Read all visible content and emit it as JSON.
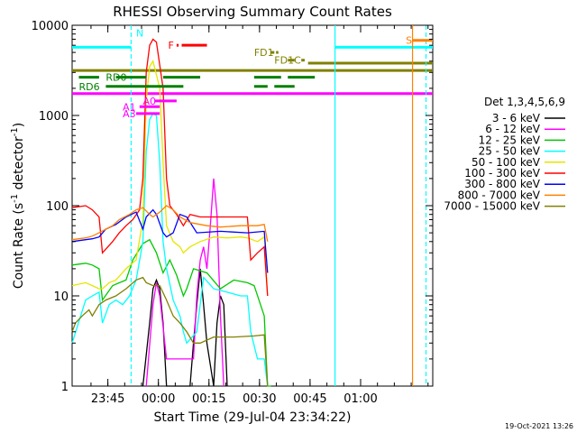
{
  "chart_data": {
    "type": "line",
    "title": "RHESSI Observing Summary Count Rates",
    "xlabel": "Start Time (29-Jul-04 23:34:22)",
    "ylabel_parts": [
      "Count Rate (s",
      "-1",
      " detector",
      "-1",
      ")"
    ],
    "y_scale": "log",
    "ylim": [
      1,
      10000
    ],
    "y_ticks": [
      {
        "value": 1,
        "label": "1"
      },
      {
        "value": 10,
        "label": "10"
      },
      {
        "value": 100,
        "label": "100"
      },
      {
        "value": 1000,
        "label": "1000"
      },
      {
        "value": 10000,
        "label": "10000"
      }
    ],
    "x_unit": "minutes since 23:34:22",
    "xlim": [
      0,
      107
    ],
    "x_ticks": [
      {
        "value": 10.6,
        "label": "23:45"
      },
      {
        "value": 25.6,
        "label": "00:00"
      },
      {
        "value": 40.6,
        "label": "00:15"
      },
      {
        "value": 55.6,
        "label": "00:30"
      },
      {
        "value": 70.6,
        "label": "00:45"
      },
      {
        "value": 85.6,
        "label": "01:00"
      }
    ],
    "legend_title": "Det 1,3,4,5,6,9",
    "legend_position": "right",
    "series": [
      {
        "name": "3 - 6 keV",
        "color": "#000000",
        "points": [
          [
            21,
            1
          ],
          [
            23,
            5
          ],
          [
            24,
            12
          ],
          [
            25,
            15
          ],
          [
            26,
            12
          ],
          [
            27,
            5
          ],
          [
            28,
            1
          ],
          [
            35,
            1
          ],
          [
            36,
            3
          ],
          [
            37,
            8
          ],
          [
            38,
            20
          ],
          [
            39,
            8
          ],
          [
            40,
            3
          ],
          [
            42,
            1
          ],
          [
            43,
            5
          ],
          [
            44,
            10
          ],
          [
            45,
            8
          ],
          [
            46,
            1
          ]
        ]
      },
      {
        "name": "6 - 12 keV",
        "color": "#ff00ff",
        "points": [
          [
            22,
            1
          ],
          [
            24,
            8
          ],
          [
            25,
            14
          ],
          [
            26,
            10
          ],
          [
            28,
            2
          ],
          [
            36,
            2
          ],
          [
            37,
            10
          ],
          [
            38,
            25
          ],
          [
            39,
            35
          ],
          [
            40,
            20
          ],
          [
            41,
            60
          ],
          [
            42,
            200
          ],
          [
            43,
            80
          ],
          [
            44,
            6
          ],
          [
            45,
            1
          ]
        ]
      },
      {
        "name": "12 - 25 keV",
        "color": "#00c800",
        "points": [
          [
            0,
            22
          ],
          [
            4,
            23
          ],
          [
            6,
            22
          ],
          [
            8,
            20
          ],
          [
            9,
            9
          ],
          [
            12,
            13
          ],
          [
            16,
            15
          ],
          [
            18,
            25
          ],
          [
            21,
            38
          ],
          [
            23,
            42
          ],
          [
            25,
            30
          ],
          [
            27,
            18
          ],
          [
            29,
            25
          ],
          [
            31,
            17
          ],
          [
            33,
            10
          ],
          [
            34,
            12
          ],
          [
            36,
            20
          ],
          [
            40,
            18
          ],
          [
            44,
            12
          ],
          [
            48,
            15
          ],
          [
            52,
            14
          ],
          [
            54,
            13
          ],
          [
            57,
            6
          ],
          [
            58,
            1
          ],
          [
            59,
            1
          ]
        ]
      },
      {
        "name": "25 - 50 keV",
        "color": "#00ffff",
        "points": [
          [
            0,
            3
          ],
          [
            4,
            9
          ],
          [
            6,
            10
          ],
          [
            8,
            11
          ],
          [
            9,
            5
          ],
          [
            11,
            8
          ],
          [
            13,
            9
          ],
          [
            15,
            8
          ],
          [
            17,
            10
          ],
          [
            19,
            15
          ],
          [
            21,
            40
          ],
          [
            22,
            400
          ],
          [
            23,
            900
          ],
          [
            24,
            1050
          ],
          [
            25,
            1000
          ],
          [
            26,
            300
          ],
          [
            27,
            40
          ],
          [
            28,
            20
          ],
          [
            30,
            9
          ],
          [
            32,
            6
          ],
          [
            33,
            4
          ],
          [
            34,
            3
          ],
          [
            37,
            4
          ],
          [
            39,
            16
          ],
          [
            42,
            12
          ],
          [
            46,
            11
          ],
          [
            50,
            10
          ],
          [
            52,
            10
          ],
          [
            53,
            4
          ],
          [
            55,
            2
          ],
          [
            57,
            2
          ],
          [
            58,
            1
          ]
        ]
      },
      {
        "name": "50 - 100 keV",
        "color": "#e6e600",
        "points": [
          [
            0,
            13
          ],
          [
            4,
            14
          ],
          [
            6,
            13
          ],
          [
            8,
            12
          ],
          [
            9,
            12
          ],
          [
            11,
            14
          ],
          [
            13,
            15
          ],
          [
            16,
            20
          ],
          [
            19,
            25
          ],
          [
            21,
            70
          ],
          [
            22,
            1500
          ],
          [
            23,
            3500
          ],
          [
            24,
            4000
          ],
          [
            26,
            2000
          ],
          [
            27,
            300
          ],
          [
            28,
            60
          ],
          [
            30,
            40
          ],
          [
            32,
            35
          ],
          [
            33,
            30
          ],
          [
            35,
            35
          ],
          [
            38,
            40
          ],
          [
            42,
            45
          ],
          [
            46,
            44
          ],
          [
            50,
            45
          ],
          [
            52,
            44
          ],
          [
            55,
            40
          ],
          [
            57,
            45
          ],
          [
            58,
            10
          ]
        ]
      },
      {
        "name": "100 - 300 keV",
        "color": "#ff0000",
        "points": [
          [
            0,
            95
          ],
          [
            4,
            100
          ],
          [
            6,
            90
          ],
          [
            8,
            75
          ],
          [
            9,
            30
          ],
          [
            12,
            40
          ],
          [
            14,
            50
          ],
          [
            16,
            60
          ],
          [
            18,
            70
          ],
          [
            20,
            90
          ],
          [
            21,
            200
          ],
          [
            22,
            3000
          ],
          [
            23,
            6000
          ],
          [
            24,
            7000
          ],
          [
            25,
            6500
          ],
          [
            27,
            2000
          ],
          [
            28,
            200
          ],
          [
            29,
            100
          ],
          [
            31,
            80
          ],
          [
            33,
            60
          ],
          [
            35,
            80
          ],
          [
            38,
            75
          ],
          [
            44,
            75
          ],
          [
            52,
            75
          ],
          [
            53,
            25
          ],
          [
            55,
            30
          ],
          [
            57,
            35
          ],
          [
            58,
            10
          ]
        ]
      },
      {
        "name": "300 - 800 keV",
        "color": "#0000ff",
        "points": [
          [
            0,
            40
          ],
          [
            4,
            42
          ],
          [
            6,
            43
          ],
          [
            8,
            45
          ],
          [
            10,
            55
          ],
          [
            13,
            62
          ],
          [
            16,
            75
          ],
          [
            19,
            85
          ],
          [
            21,
            55
          ],
          [
            22,
            75
          ],
          [
            24,
            90
          ],
          [
            25,
            80
          ],
          [
            27,
            50
          ],
          [
            28,
            45
          ],
          [
            30,
            50
          ],
          [
            32,
            80
          ],
          [
            34,
            75
          ],
          [
            37,
            50
          ],
          [
            44,
            52
          ],
          [
            52,
            50
          ],
          [
            57,
            52
          ],
          [
            58,
            18
          ]
        ]
      },
      {
        "name": "800 - 7000 keV",
        "color": "#ff8000",
        "points": [
          [
            0,
            42
          ],
          [
            4,
            44
          ],
          [
            6,
            46
          ],
          [
            8,
            50
          ],
          [
            10,
            55
          ],
          [
            12,
            60
          ],
          [
            14,
            70
          ],
          [
            17,
            80
          ],
          [
            19,
            90
          ],
          [
            21,
            95
          ],
          [
            23,
            80
          ],
          [
            24,
            75
          ],
          [
            26,
            85
          ],
          [
            28,
            100
          ],
          [
            30,
            90
          ],
          [
            32,
            75
          ],
          [
            35,
            65
          ],
          [
            40,
            60
          ],
          [
            44,
            58
          ],
          [
            50,
            60
          ],
          [
            55,
            60
          ],
          [
            57,
            62
          ],
          [
            58,
            40
          ]
        ]
      },
      {
        "name": "7000 - 15000 keV",
        "color": "#808000",
        "points": [
          [
            0,
            4
          ],
          [
            1,
            5
          ],
          [
            3,
            6
          ],
          [
            5,
            7
          ],
          [
            6,
            6
          ],
          [
            8,
            8
          ],
          [
            10,
            9
          ],
          [
            13,
            10
          ],
          [
            16,
            12
          ],
          [
            19,
            15
          ],
          [
            21,
            16
          ],
          [
            22,
            14
          ],
          [
            24,
            13
          ],
          [
            26,
            13
          ],
          [
            28,
            9
          ],
          [
            30,
            6
          ],
          [
            32,
            5
          ],
          [
            34,
            4
          ],
          [
            36,
            3
          ],
          [
            38,
            3
          ],
          [
            42,
            3.5
          ],
          [
            48,
            3.5
          ],
          [
            54,
            3.6
          ],
          [
            57,
            3.7
          ],
          [
            58,
            1
          ]
        ]
      }
    ],
    "annotations": {
      "flags": [
        {
          "label": "F",
          "color": "#ff0000",
          "label_x": 28.5,
          "y": 6000,
          "segments": [
            [
              31,
              31.6
            ],
            [
              32.5,
              40
            ]
          ]
        },
        {
          "label": "FD1",
          "color": "#808000",
          "label_x": 54,
          "y": 5000,
          "segments": [
            [
              59,
              60
            ],
            [
              60.5,
              61.2
            ]
          ]
        },
        {
          "label": "FD1C",
          "color": "#808000",
          "label_x": 60,
          "y": 4100,
          "segments": [
            [
              64,
              66
            ],
            [
              68,
              69
            ]
          ]
        },
        {
          "label": "RD0",
          "color": "#008000",
          "label_x": 10,
          "y": 2650,
          "segments": [
            [
              2,
              8
            ],
            [
              13,
              22
            ],
            [
              27,
              38
            ],
            [
              54,
              62
            ],
            [
              64,
              72
            ]
          ]
        },
        {
          "label": "RD6",
          "color": "#008000",
          "label_x": 2,
          "y": 2100,
          "segments": [
            [
              10,
              33
            ],
            [
              54,
              58
            ],
            [
              60,
              66
            ]
          ]
        },
        {
          "label": "A1",
          "color": "#ff00ff",
          "label_x": 15,
          "y": 1250,
          "segments": [
            [
              20,
              26
            ]
          ]
        },
        {
          "label": "A0",
          "color": "#ff00ff",
          "label_x": 21,
          "y": 1450,
          "segments": [
            [
              24.5,
              31
            ]
          ]
        },
        {
          "label": "A3",
          "color": "#ff00ff",
          "label_x": 15,
          "y": 1050,
          "segments": [
            [
              19,
              26
            ]
          ]
        },
        {
          "label": "S",
          "color": "#ff8000",
          "label_x": 99,
          "y": 6800,
          "segments": [
            [
              101,
              107
            ]
          ]
        },
        {
          "label": "N",
          "color": "#00ffff",
          "label_x": 19,
          "y": 8200,
          "segments": []
        }
      ],
      "levels": [
        {
          "name": "cyan-level",
          "color": "#00ffff",
          "y": 5700,
          "segments": [
            [
              0,
              17.5
            ],
            [
              78,
              107
            ]
          ]
        },
        {
          "name": "olive-level-1",
          "color": "#808000",
          "y": 3800,
          "segments": [
            [
              70,
              107
            ]
          ]
        },
        {
          "name": "olive-level-2",
          "color": "#808000",
          "y": 3150,
          "segments": [
            [
              0,
              107
            ]
          ]
        },
        {
          "name": "magenta-level",
          "color": "#ff00ff",
          "y": 1750,
          "segments": [
            [
              0,
              107
            ]
          ]
        }
      ],
      "vlines": [
        {
          "name": "night-start-line",
          "color": "#00ffff",
          "x": 17.5,
          "dashed": true
        },
        {
          "name": "night-end-line",
          "color": "#00ffff",
          "x": 78,
          "dashed": false
        },
        {
          "name": "saa-start-line",
          "color": "#ff8000",
          "x": 101,
          "dashed": false
        },
        {
          "name": "saa-end-line",
          "color": "#00ffff",
          "x": 105,
          "dashed": true
        }
      ]
    }
  },
  "footer": {
    "timestamp": "19-Oct-2021 13:26"
  }
}
